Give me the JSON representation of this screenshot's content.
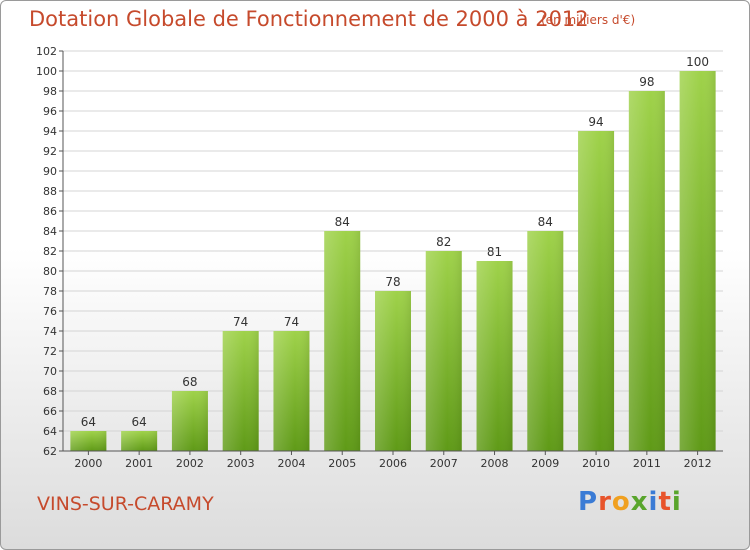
{
  "header": {
    "title": "Dotation Globale de Fonctionnement de 2000 à 2012",
    "subtitle": "(en milliers d'€)"
  },
  "footer": {
    "commune": "VINS-SUR-CARAMY",
    "logo_letters": [
      "P",
      "r",
      "o",
      "x",
      "i",
      "t",
      "i"
    ],
    "logo_colors": [
      "#3a7bd5",
      "#e8542b",
      "#f0a020",
      "#59a52c",
      "#3a7bd5",
      "#e8542b",
      "#59a52c"
    ]
  },
  "chart_data": {
    "type": "bar",
    "title": "Dotation Globale de Fonctionnement de 2000 à 2012",
    "categories": [
      "2000",
      "2001",
      "2002",
      "2003",
      "2004",
      "2005",
      "2006",
      "2007",
      "2008",
      "2009",
      "2010",
      "2011",
      "2012"
    ],
    "values": [
      64,
      64,
      68,
      74,
      74,
      84,
      78,
      82,
      81,
      84,
      94,
      98,
      100
    ],
    "xlabel": "",
    "ylabel": "",
    "ylim": [
      62,
      102
    ],
    "yticks": [
      62,
      64,
      66,
      68,
      70,
      72,
      74,
      76,
      78,
      80,
      82,
      84,
      86,
      88,
      90,
      92,
      94,
      96,
      98,
      100,
      102
    ],
    "grid": true,
    "bar_color_top": "#9fd24a",
    "bar_color_bottom": "#5f9a17"
  }
}
